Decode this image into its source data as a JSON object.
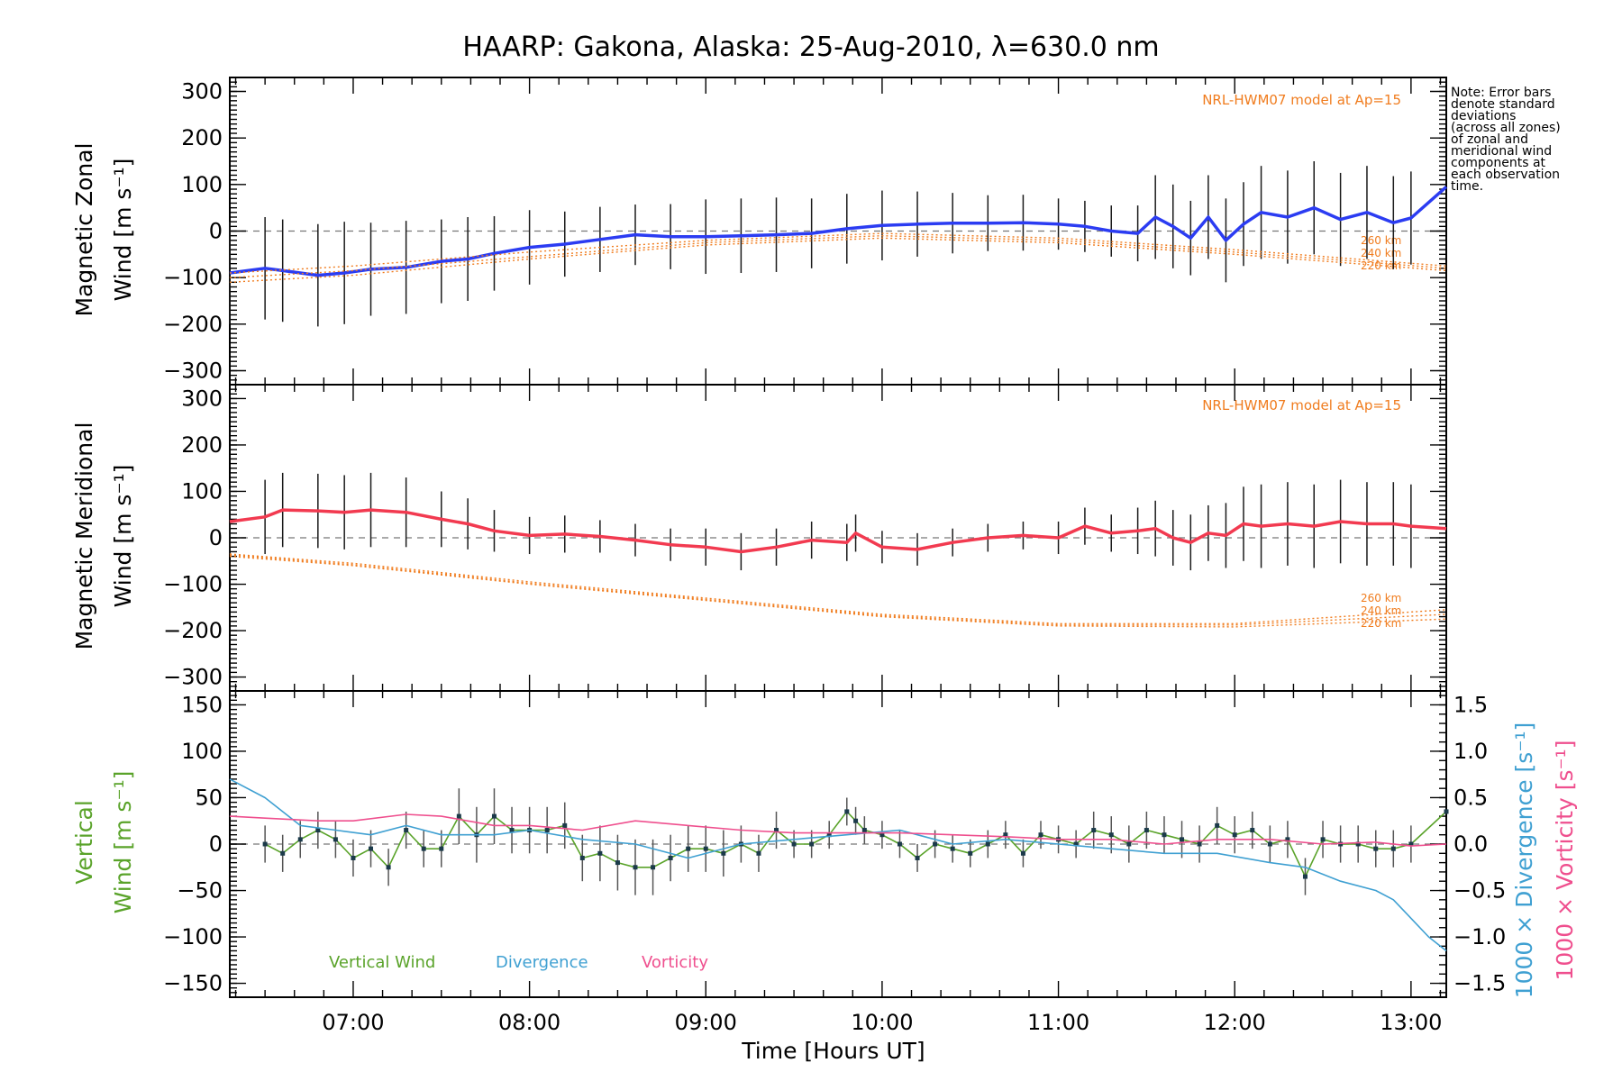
{
  "figure": {
    "title": "HAARP: Gakona,  Alaska: 25-Aug-2010, λ=630.0 nm",
    "note_lines": [
      "Note: Error bars",
      "denote standard",
      "deviations",
      "(across all zones)",
      "of zonal and",
      "meridional wind",
      "components at",
      "each observation",
      "time."
    ],
    "model_note": "NRL-HWM07 model at Ap=15",
    "km_labels": [
      "260 km",
      "240 km",
      "220 km"
    ],
    "colors": {
      "zonal": "#2b3cf2",
      "meridional": "#f23a50",
      "model": "#f07c1e",
      "vertical": "#5aa32a",
      "divergence": "#3fa0d2",
      "vorticity": "#ef4f8e",
      "errorbar": "#1a1a1a",
      "scatter": "#8c8cf0"
    }
  },
  "chart_data": [
    {
      "type": "line",
      "title": "HAARP: Gakona,  Alaska: 25-Aug-2010, λ=630.0 nm",
      "ylabel": [
        "Magnetic Zonal",
        "Wind [m s⁻¹]"
      ],
      "ylim": [
        -330,
        330
      ],
      "yticks": [
        300,
        200,
        100,
        0,
        -100,
        -200,
        -300
      ],
      "xlim_hours": [
        6.3,
        13.2
      ],
      "zero_line": true,
      "series": [
        {
          "id": "zonal-wind",
          "x_hours": [
            6.3,
            6.5,
            6.6,
            6.8,
            6.95,
            7.1,
            7.3,
            7.5,
            7.65,
            7.8,
            8.0,
            8.2,
            8.4,
            8.6,
            8.8,
            9.0,
            9.2,
            9.4,
            9.6,
            9.8,
            10.0,
            10.2,
            10.4,
            10.6,
            10.8,
            11.0,
            11.15,
            11.3,
            11.45,
            11.55,
            11.65,
            11.75,
            11.85,
            11.95,
            12.05,
            12.15,
            12.3,
            12.45,
            12.6,
            12.75,
            12.9,
            13.0,
            13.2
          ],
          "y": [
            -90,
            -80,
            -85,
            -95,
            -90,
            -82,
            -78,
            -65,
            -60,
            -48,
            -35,
            -28,
            -18,
            -8,
            -12,
            -12,
            -10,
            -8,
            -5,
            5,
            12,
            15,
            17,
            17,
            18,
            15,
            10,
            0,
            -5,
            30,
            10,
            -15,
            30,
            -20,
            15,
            40,
            30,
            50,
            25,
            40,
            18,
            28,
            95
          ],
          "errors": [
            110,
            110,
            110,
            110,
            110,
            100,
            100,
            90,
            90,
            80,
            80,
            70,
            70,
            65,
            70,
            80,
            80,
            80,
            75,
            75,
            75,
            70,
            65,
            60,
            60,
            55,
            55,
            55,
            60,
            90,
            90,
            80,
            90,
            90,
            90,
            100,
            100,
            100,
            100,
            100,
            100,
            100,
            0
          ]
        },
        {
          "id": "model-260km",
          "x_hours": [
            6.3,
            7.0,
            8.0,
            9.0,
            10.0,
            11.0,
            12.0,
            13.2
          ],
          "y": [
            -110,
            -95,
            -60,
            -30,
            -15,
            -25,
            -50,
            -85
          ]
        },
        {
          "id": "model-240km",
          "x_hours": [
            6.3,
            7.0,
            8.0,
            9.0,
            10.0,
            11.0,
            12.0,
            13.2
          ],
          "y": [
            -100,
            -85,
            -55,
            -25,
            -10,
            -20,
            -45,
            -80
          ]
        },
        {
          "id": "model-220km",
          "x_hours": [
            6.3,
            7.0,
            8.0,
            9.0,
            10.0,
            11.0,
            12.0,
            13.2
          ],
          "y": [
            -90,
            -75,
            -45,
            -20,
            -5,
            -15,
            -40,
            -75
          ]
        }
      ]
    },
    {
      "type": "line",
      "ylabel": [
        "Magnetic Meridional",
        "Wind [m s⁻¹]"
      ],
      "ylim": [
        -330,
        330
      ],
      "yticks": [
        300,
        200,
        100,
        0,
        -100,
        -200,
        -300
      ],
      "xlim_hours": [
        6.3,
        13.2
      ],
      "zero_line": true,
      "series": [
        {
          "id": "meridional-wind",
          "x_hours": [
            6.3,
            6.5,
            6.6,
            6.8,
            6.95,
            7.1,
            7.3,
            7.5,
            7.65,
            7.8,
            8.0,
            8.2,
            8.4,
            8.6,
            8.8,
            9.0,
            9.2,
            9.4,
            9.6,
            9.8,
            9.85,
            10.0,
            10.2,
            10.4,
            10.6,
            10.8,
            11.0,
            11.15,
            11.3,
            11.45,
            11.55,
            11.65,
            11.75,
            11.85,
            11.95,
            12.05,
            12.15,
            12.3,
            12.45,
            12.6,
            12.75,
            12.9,
            13.0,
            13.2
          ],
          "y": [
            35,
            45,
            60,
            58,
            55,
            60,
            55,
            40,
            30,
            15,
            5,
            8,
            3,
            -5,
            -15,
            -20,
            -30,
            -20,
            -5,
            -10,
            10,
            -20,
            -25,
            -10,
            0,
            5,
            0,
            25,
            10,
            15,
            20,
            0,
            -10,
            10,
            5,
            30,
            25,
            30,
            25,
            35,
            30,
            30,
            25,
            20
          ],
          "errors": [
            70,
            80,
            80,
            80,
            80,
            80,
            75,
            60,
            55,
            45,
            40,
            40,
            35,
            35,
            35,
            40,
            40,
            40,
            40,
            40,
            40,
            35,
            35,
            30,
            30,
            30,
            35,
            40,
            40,
            50,
            60,
            60,
            60,
            60,
            70,
            80,
            90,
            90,
            90,
            90,
            90,
            90,
            90,
            0
          ]
        },
        {
          "id": "model-meridional-260km",
          "x_hours": [
            6.3,
            7.0,
            8.0,
            9.0,
            10.0,
            11.0,
            12.0,
            13.2
          ],
          "y": [
            -35,
            -55,
            -95,
            -130,
            -165,
            -185,
            -185,
            -155
          ]
        },
        {
          "id": "model-meridional-240km",
          "x_hours": [
            6.3,
            7.0,
            8.0,
            9.0,
            10.0,
            11.0,
            12.0,
            13.2
          ],
          "y": [
            -37,
            -58,
            -98,
            -133,
            -168,
            -188,
            -188,
            -165
          ]
        },
        {
          "id": "model-meridional-220km",
          "x_hours": [
            6.3,
            7.0,
            8.0,
            9.0,
            10.0,
            11.0,
            12.0,
            13.2
          ],
          "y": [
            -40,
            -60,
            -100,
            -135,
            -170,
            -190,
            -192,
            -175
          ]
        }
      ]
    },
    {
      "type": "line",
      "ylabel": [
        "Vertical",
        "Wind [m s⁻¹]"
      ],
      "ylim": [
        -165,
        165
      ],
      "yticks": [
        150,
        100,
        50,
        0,
        -50,
        -100,
        -150
      ],
      "y2label_divergence": "1000 × Divergence [s⁻¹]",
      "y2label_vorticity": "1000 × Vorticity [s⁻¹]",
      "y2lim": [
        -1.65,
        1.65
      ],
      "y2ticks": [
        1.5,
        1.0,
        0.5,
        0.0,
        -0.5,
        -1.0,
        -1.5
      ],
      "xlabel": "Time [Hours UT]",
      "xlim_hours": [
        6.3,
        13.2
      ],
      "xticks": [
        "07:00",
        "08:00",
        "09:00",
        "10:00",
        "11:00",
        "12:00",
        "13:00"
      ],
      "xtick_hours": [
        7,
        8,
        9,
        10,
        11,
        12,
        13
      ],
      "zero_line": true,
      "legend": [
        "Vertical Wind",
        "Divergence",
        "Vorticity"
      ],
      "series": [
        {
          "id": "vertical-wind",
          "x_hours": [
            6.5,
            6.6,
            6.7,
            6.8,
            6.9,
            7.0,
            7.1,
            7.2,
            7.3,
            7.4,
            7.5,
            7.6,
            7.7,
            7.8,
            7.9,
            8.0,
            8.1,
            8.2,
            8.3,
            8.4,
            8.5,
            8.6,
            8.7,
            8.8,
            8.9,
            9.0,
            9.1,
            9.2,
            9.3,
            9.4,
            9.5,
            9.6,
            9.7,
            9.8,
            9.85,
            9.9,
            10.0,
            10.1,
            10.2,
            10.3,
            10.4,
            10.5,
            10.6,
            10.7,
            10.8,
            10.9,
            11.0,
            11.1,
            11.2,
            11.3,
            11.4,
            11.5,
            11.6,
            11.7,
            11.8,
            11.9,
            12.0,
            12.1,
            12.2,
            12.3,
            12.4,
            12.5,
            12.6,
            12.7,
            12.8,
            12.9,
            13.0,
            13.2
          ],
          "y": [
            0,
            -10,
            5,
            15,
            5,
            -15,
            -5,
            -25,
            15,
            -5,
            -5,
            30,
            10,
            30,
            15,
            15,
            15,
            20,
            -15,
            -10,
            -20,
            -25,
            -25,
            -15,
            -5,
            -5,
            -10,
            0,
            -10,
            15,
            0,
            0,
            10,
            35,
            25,
            15,
            10,
            0,
            -15,
            0,
            -5,
            -10,
            0,
            10,
            -10,
            10,
            5,
            0,
            15,
            10,
            0,
            15,
            10,
            5,
            0,
            20,
            10,
            15,
            0,
            5,
            -35,
            5,
            0,
            0,
            -5,
            -5,
            0,
            35
          ],
          "errors": [
            20,
            20,
            20,
            20,
            20,
            20,
            20,
            20,
            20,
            20,
            20,
            30,
            30,
            30,
            25,
            25,
            25,
            25,
            25,
            30,
            30,
            30,
            30,
            25,
            25,
            25,
            25,
            20,
            20,
            20,
            15,
            15,
            15,
            15,
            15,
            15,
            15,
            15,
            15,
            15,
            15,
            15,
            15,
            15,
            15,
            15,
            15,
            15,
            20,
            20,
            20,
            20,
            20,
            20,
            20,
            20,
            20,
            20,
            20,
            20,
            20,
            20,
            20,
            20,
            20,
            20,
            20,
            0
          ]
        },
        {
          "id": "divergence",
          "axis": "y2",
          "x_hours": [
            6.3,
            6.5,
            6.7,
            6.9,
            7.1,
            7.3,
            7.5,
            7.8,
            8.0,
            8.3,
            8.6,
            8.9,
            9.2,
            9.5,
            9.8,
            10.1,
            10.4,
            10.7,
            11.0,
            11.3,
            11.6,
            11.9,
            12.2,
            12.4,
            12.6,
            12.8,
            12.9,
            13.0,
            13.1,
            13.2
          ],
          "y": [
            0.7,
            0.5,
            0.2,
            0.15,
            0.1,
            0.2,
            0.1,
            0.1,
            0.15,
            0.05,
            0.0,
            -0.15,
            0.0,
            0.05,
            0.1,
            0.15,
            0.0,
            0.05,
            0.0,
            -0.05,
            -0.1,
            -0.1,
            -0.2,
            -0.25,
            -0.4,
            -0.5,
            -0.6,
            -0.8,
            -1.0,
            -1.15
          ]
        },
        {
          "id": "vorticity",
          "axis": "y2",
          "x_hours": [
            6.3,
            6.5,
            6.8,
            7.0,
            7.3,
            7.5,
            7.8,
            8.0,
            8.3,
            8.6,
            8.9,
            9.2,
            9.5,
            9.8,
            10.1,
            10.4,
            10.7,
            11.0,
            11.3,
            11.6,
            11.9,
            12.2,
            12.5,
            12.8,
            13.0,
            13.2
          ],
          "y": [
            0.3,
            0.28,
            0.25,
            0.25,
            0.32,
            0.3,
            0.2,
            0.2,
            0.15,
            0.25,
            0.2,
            0.15,
            0.12,
            0.12,
            0.12,
            0.1,
            0.08,
            0.05,
            0.05,
            0.0,
            0.05,
            0.05,
            0.0,
            0.02,
            -0.02,
            0.0
          ]
        }
      ]
    }
  ]
}
